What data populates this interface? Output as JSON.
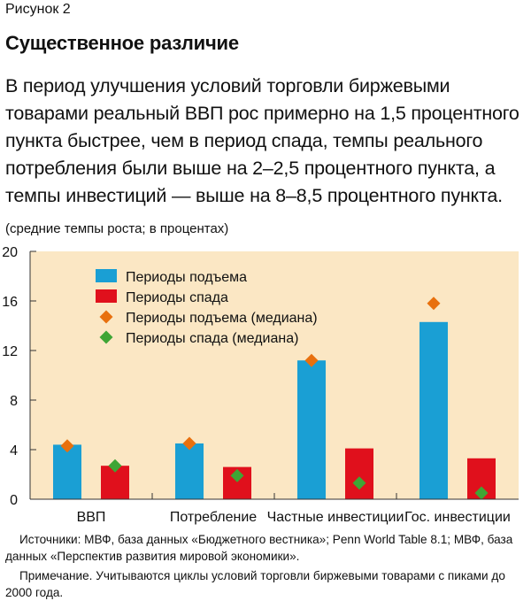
{
  "figure_label": "Рисунок 2",
  "title": "Существенное различие",
  "lead": "В период улучшения условий торговли биржевыми товарами реальный ВВП рос примерно на 1,5 процентного пункта быстрее, чем в период спада, темпы реального потребления были выше на 2–2,5 процентного пункта, а темпы инвестиций — выше на 8–8,5 процентного пункта.",
  "units": "(средние темпы роста; в процентах)",
  "sources": "Источники: МВФ, база данных «Бюджетного вестника»; Penn World Table 8.1; МВФ, база данных «Перспектив развития мировой экономики».",
  "note": "Примечание. Учитываются циклы условий торговли биржевыми товарами с пиками до 2000 года.",
  "colors": {
    "background": "#fbe7c4",
    "upturn_bar": "#1a9fd4",
    "downturn_bar": "#e0101c",
    "upturn_median": "#e8700e",
    "downturn_median": "#3fa535"
  },
  "chart_data": {
    "type": "bar",
    "categories": [
      "ВВП",
      "Потребление",
      "Частные инвестиции",
      "Гос. инвестиции"
    ],
    "series": [
      {
        "name": "Периоды подъема",
        "kind": "bar",
        "values": [
          4.4,
          4.5,
          11.2,
          14.3
        ]
      },
      {
        "name": "Периоды спада",
        "kind": "bar",
        "values": [
          2.7,
          2.6,
          4.1,
          3.3
        ]
      },
      {
        "name": "Периоды подъема (медиана)",
        "kind": "marker",
        "values": [
          4.3,
          4.5,
          11.2,
          15.8
        ]
      },
      {
        "name": "Периоды спада (медиана)",
        "kind": "marker",
        "values": [
          2.7,
          1.9,
          1.3,
          0.5
        ]
      }
    ],
    "ylim": [
      0,
      20
    ],
    "yticks": [
      "0",
      "4",
      "8",
      "12",
      "16",
      "20"
    ],
    "legend_position": "top-left",
    "grid": false
  }
}
